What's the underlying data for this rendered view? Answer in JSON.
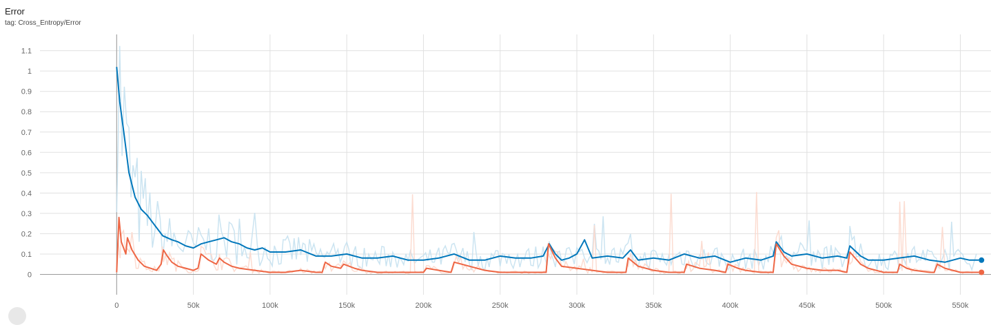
{
  "title": "Error",
  "subtitle": "tag: Cross_Entropy/Error",
  "chart_data": {
    "type": "line",
    "title": "Error",
    "subtitle": "tag: Cross_Entropy/Error",
    "xlim": [
      -50000,
      570000
    ],
    "ylim": [
      -0.1,
      1.18
    ],
    "grid": true,
    "x_ticks": [
      0,
      50000,
      100000,
      150000,
      200000,
      250000,
      300000,
      350000,
      400000,
      450000,
      500000,
      550000
    ],
    "x_tick_labels": [
      "0",
      "50k",
      "100k",
      "150k",
      "200k",
      "250k",
      "300k",
      "350k",
      "400k",
      "450k",
      "500k",
      "550k"
    ],
    "y_ticks": [
      0,
      0.1,
      0.2,
      0.3,
      0.4,
      0.5,
      0.6,
      0.7,
      0.8,
      0.9,
      1,
      1.1
    ],
    "y_tick_labels": [
      "0",
      "0.1",
      "0.2",
      "0.3",
      "0.4",
      "0.5",
      "0.6",
      "0.7",
      "0.8",
      "0.9",
      "1",
      "1.1"
    ],
    "series": [
      {
        "color": "#0077bb",
        "raw_color": "#c5e1f0",
        "smoothed": true,
        "x": [
          0,
          2000,
          5000,
          8000,
          12000,
          16000,
          20000,
          25000,
          30000,
          33000,
          36000,
          40000,
          45000,
          50000,
          55000,
          60000,
          65000,
          70000,
          75000,
          80000,
          85000,
          90000,
          95000,
          100000,
          110000,
          120000,
          130000,
          140000,
          150000,
          160000,
          170000,
          180000,
          190000,
          200000,
          210000,
          220000,
          230000,
          240000,
          250000,
          260000,
          270000,
          278000,
          282000,
          286000,
          290000,
          295000,
          300000,
          305000,
          310000,
          320000,
          330000,
          335000,
          340000,
          350000,
          360000,
          370000,
          380000,
          390000,
          400000,
          410000,
          420000,
          428000,
          430000,
          435000,
          440000,
          450000,
          460000,
          470000,
          476000,
          478000,
          485000,
          490000,
          500000,
          510000,
          520000,
          530000,
          540000,
          550000,
          556000,
          562000
        ],
        "values": [
          1.02,
          0.85,
          0.68,
          0.5,
          0.38,
          0.32,
          0.29,
          0.24,
          0.19,
          0.18,
          0.17,
          0.16,
          0.14,
          0.13,
          0.15,
          0.16,
          0.17,
          0.18,
          0.16,
          0.15,
          0.13,
          0.12,
          0.13,
          0.11,
          0.11,
          0.12,
          0.09,
          0.09,
          0.1,
          0.08,
          0.08,
          0.09,
          0.07,
          0.07,
          0.08,
          0.1,
          0.07,
          0.07,
          0.09,
          0.08,
          0.08,
          0.09,
          0.15,
          0.1,
          0.07,
          0.08,
          0.1,
          0.17,
          0.08,
          0.09,
          0.08,
          0.12,
          0.07,
          0.08,
          0.07,
          0.1,
          0.08,
          0.09,
          0.06,
          0.08,
          0.07,
          0.09,
          0.16,
          0.11,
          0.09,
          0.1,
          0.08,
          0.09,
          0.08,
          0.14,
          0.09,
          0.07,
          0.07,
          0.08,
          0.09,
          0.07,
          0.06,
          0.08,
          0.07,
          0.07
        ]
      },
      {
        "color": "#ee6644",
        "raw_color": "#fcd8cc",
        "smoothed": true,
        "x": [
          0,
          1500,
          3000,
          6000,
          7000,
          10000,
          14000,
          18000,
          22000,
          26000,
          29000,
          30500,
          33000,
          36000,
          40000,
          45000,
          50000,
          53000,
          55000,
          60000,
          65000,
          67000,
          70000,
          75000,
          80000,
          90000,
          100000,
          110000,
          120000,
          130000,
          134000,
          136000,
          140000,
          146000,
          148000,
          155000,
          160000,
          170000,
          180000,
          190000,
          200000,
          202000,
          210000,
          218000,
          220000,
          230000,
          240000,
          250000,
          260000,
          270000,
          280000,
          281500,
          286000,
          290000,
          300000,
          310000,
          320000,
          332000,
          333500,
          340000,
          350000,
          360000,
          370000,
          371500,
          380000,
          390000,
          397000,
          398500,
          405000,
          410000,
          420000,
          428000,
          430000,
          435000,
          440000,
          450000,
          460000,
          470000,
          476000,
          478000,
          485000,
          490000,
          500000,
          509000,
          510500,
          515000,
          520000,
          530000,
          533000,
          535000,
          540000,
          550000,
          556000,
          562000
        ],
        "values": [
          0.01,
          0.28,
          0.16,
          0.1,
          0.18,
          0.12,
          0.07,
          0.04,
          0.03,
          0.02,
          0.05,
          0.12,
          0.09,
          0.06,
          0.04,
          0.03,
          0.02,
          0.03,
          0.1,
          0.07,
          0.05,
          0.08,
          0.06,
          0.04,
          0.03,
          0.02,
          0.01,
          0.01,
          0.02,
          0.01,
          0.01,
          0.06,
          0.04,
          0.03,
          0.05,
          0.03,
          0.02,
          0.01,
          0.01,
          0.01,
          0.01,
          0.03,
          0.02,
          0.01,
          0.06,
          0.04,
          0.02,
          0.01,
          0.01,
          0.01,
          0.01,
          0.15,
          0.08,
          0.04,
          0.03,
          0.02,
          0.01,
          0.01,
          0.08,
          0.04,
          0.02,
          0.01,
          0.01,
          0.05,
          0.03,
          0.02,
          0.01,
          0.05,
          0.03,
          0.02,
          0.01,
          0.01,
          0.15,
          0.09,
          0.05,
          0.03,
          0.02,
          0.02,
          0.01,
          0.11,
          0.05,
          0.03,
          0.01,
          0.01,
          0.05,
          0.03,
          0.02,
          0.01,
          0.01,
          0.05,
          0.03,
          0.01,
          0.01,
          0.01
        ]
      }
    ]
  }
}
